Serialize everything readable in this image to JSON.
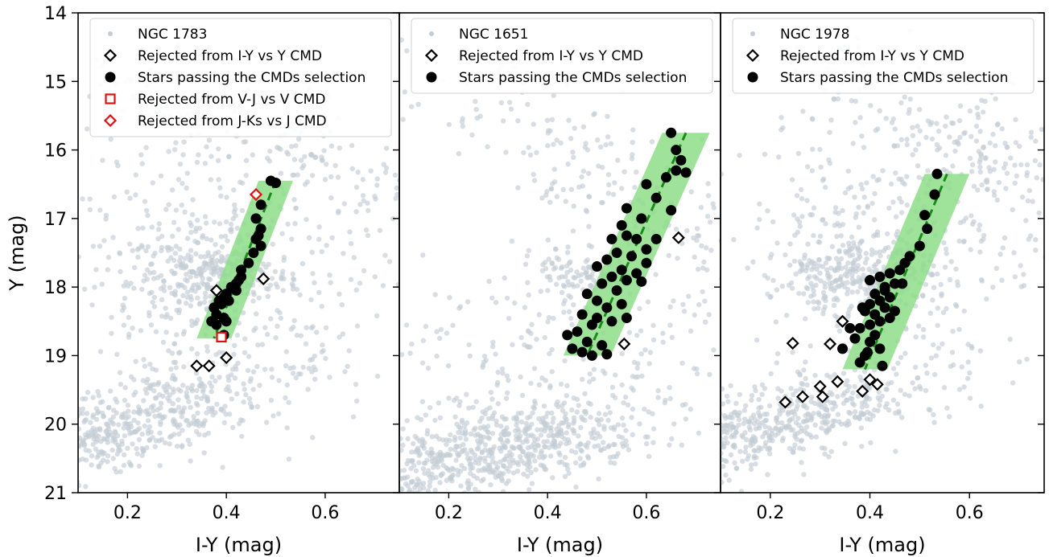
{
  "figure": {
    "ylabel": "Y (mag)",
    "ylim": [
      21,
      14
    ],
    "yticks": [
      "14",
      "15",
      "16",
      "17",
      "18",
      "19",
      "20",
      "21"
    ],
    "ytick_values": [
      14,
      15,
      16,
      17,
      18,
      19,
      20,
      21
    ],
    "colors": {
      "field": "#c3ccd4",
      "band": "#8ede8a",
      "fit_line": "#1a8a1a",
      "member": "#000000",
      "rejected_iy": "#000000",
      "rejected_other": "#e01010"
    }
  },
  "chart_data": [
    {
      "type": "scatter",
      "title": "",
      "xlabel": "I-Y (mag)",
      "ylabel": "Y (mag)",
      "xlim": [
        0.1,
        0.75
      ],
      "ylim": [
        21,
        14
      ],
      "xticks": [
        "0.2",
        "0.4",
        "0.6"
      ],
      "xtick_values": [
        0.2,
        0.4,
        0.6
      ],
      "legend": {
        "placement": "top",
        "entries": [
          {
            "label": "NGC 1783",
            "marker": "field-dot"
          },
          {
            "label": "Rejected from I-Y vs Y CMD",
            "marker": "black-diamond"
          },
          {
            "label": "Stars passing the CMDs selection",
            "marker": "black-circle"
          },
          {
            "label": "Rejected from V-J vs V CMD",
            "marker": "red-square"
          },
          {
            "label": "Rejected from J-Ks vs J CMD",
            "marker": "red-diamond"
          }
        ]
      },
      "band": {
        "y_top": 16.45,
        "y_bottom": 18.75,
        "x_top": 0.5,
        "x_bottom": 0.375,
        "half_width": 0.035
      },
      "fit_line": {
        "x1": 0.5,
        "y1": 16.45,
        "x2": 0.375,
        "y2": 18.75
      },
      "series": [
        {
          "name": "Stars passing the CMDs selection",
          "marker": "black-circle",
          "points": [
            [
              0.49,
              16.45
            ],
            [
              0.5,
              16.48
            ],
            [
              0.47,
              16.8
            ],
            [
              0.46,
              17.0
            ],
            [
              0.47,
              17.15
            ],
            [
              0.465,
              17.25
            ],
            [
              0.46,
              17.3
            ],
            [
              0.47,
              17.4
            ],
            [
              0.455,
              17.5
            ],
            [
              0.445,
              17.65
            ],
            [
              0.43,
              17.75
            ],
            [
              0.43,
              17.85
            ],
            [
              0.425,
              17.9
            ],
            [
              0.42,
              17.95
            ],
            [
              0.41,
              18.0
            ],
            [
              0.42,
              18.05
            ],
            [
              0.4,
              18.1
            ],
            [
              0.395,
              18.15
            ],
            [
              0.385,
              18.2
            ],
            [
              0.405,
              18.2
            ],
            [
              0.39,
              18.25
            ],
            [
              0.375,
              18.3
            ],
            [
              0.38,
              18.4
            ],
            [
              0.395,
              18.45
            ],
            [
              0.4,
              18.5
            ],
            [
              0.37,
              18.5
            ],
            [
              0.38,
              18.55
            ],
            [
              0.395,
              18.7
            ]
          ]
        },
        {
          "name": "Rejected from I-Y vs Y CMD",
          "marker": "black-diamond",
          "points": [
            [
              0.38,
              18.05
            ],
            [
              0.475,
              17.88
            ],
            [
              0.34,
              19.15
            ],
            [
              0.365,
              19.15
            ],
            [
              0.4,
              19.03
            ]
          ]
        },
        {
          "name": "Rejected from V-J vs V CMD",
          "marker": "red-square",
          "points": [
            [
              0.39,
              18.73
            ]
          ]
        },
        {
          "name": "Rejected from J-Ks vs J CMD",
          "marker": "red-diamond",
          "points": [
            [
              0.46,
              16.65
            ]
          ]
        }
      ]
    },
    {
      "type": "scatter",
      "title": "",
      "xlabel": "I-Y (mag)",
      "ylabel": "",
      "xlim": [
        0.1,
        0.75
      ],
      "ylim": [
        21,
        14
      ],
      "xticks": [
        "0.2",
        "0.4",
        "0.6"
      ],
      "xtick_values": [
        0.2,
        0.4,
        0.6
      ],
      "legend": {
        "placement": "top",
        "entries": [
          {
            "label": "NGC 1651",
            "marker": "field-dot"
          },
          {
            "label": "Rejected from I-Y vs Y CMD",
            "marker": "black-diamond"
          },
          {
            "label": "Stars passing the CMDs selection",
            "marker": "black-circle"
          }
        ]
      },
      "band": {
        "y_top": 15.75,
        "y_bottom": 19.0,
        "x_top": 0.68,
        "x_bottom": 0.48,
        "half_width": 0.048
      },
      "fit_line": {
        "x1": 0.68,
        "y1": 15.75,
        "x2": 0.48,
        "y2": 19.0
      },
      "series": [
        {
          "name": "Stars passing the CMDs selection",
          "marker": "black-circle",
          "points": [
            [
              0.65,
              15.75
            ],
            [
              0.66,
              16.0
            ],
            [
              0.67,
              16.15
            ],
            [
              0.66,
              16.3
            ],
            [
              0.68,
              16.33
            ],
            [
              0.64,
              16.4
            ],
            [
              0.6,
              16.5
            ],
            [
              0.62,
              16.7
            ],
            [
              0.65,
              16.88
            ],
            [
              0.56,
              16.85
            ],
            [
              0.59,
              17.0
            ],
            [
              0.55,
              17.1
            ],
            [
              0.56,
              17.25
            ],
            [
              0.58,
              17.3
            ],
            [
              0.62,
              17.3
            ],
            [
              0.53,
              17.3
            ],
            [
              0.6,
              17.45
            ],
            [
              0.54,
              17.5
            ],
            [
              0.57,
              17.55
            ],
            [
              0.6,
              17.65
            ],
            [
              0.52,
              17.6
            ],
            [
              0.5,
              17.7
            ],
            [
              0.55,
              17.75
            ],
            [
              0.58,
              17.8
            ],
            [
              0.53,
              17.85
            ],
            [
              0.56,
              17.9
            ],
            [
              0.59,
              17.92
            ],
            [
              0.51,
              17.95
            ],
            [
              0.54,
              18.05
            ],
            [
              0.48,
              18.1
            ],
            [
              0.5,
              18.2
            ],
            [
              0.52,
              18.3
            ],
            [
              0.55,
              18.25
            ],
            [
              0.47,
              18.4
            ],
            [
              0.5,
              18.45
            ],
            [
              0.53,
              18.5
            ],
            [
              0.56,
              18.45
            ],
            [
              0.49,
              18.55
            ],
            [
              0.46,
              18.65
            ],
            [
              0.48,
              18.8
            ],
            [
              0.51,
              18.85
            ],
            [
              0.45,
              18.9
            ],
            [
              0.47,
              18.95
            ],
            [
              0.49,
              19.0
            ],
            [
              0.52,
              18.98
            ],
            [
              0.44,
              18.7
            ]
          ]
        },
        {
          "name": "Rejected from I-Y vs Y CMD",
          "marker": "black-diamond",
          "points": [
            [
              0.665,
              17.28
            ],
            [
              0.555,
              18.83
            ]
          ]
        }
      ]
    },
    {
      "type": "scatter",
      "title": "",
      "xlabel": "I-Y (mag)",
      "ylabel": "",
      "xlim": [
        0.1,
        0.75
      ],
      "ylim": [
        21,
        14
      ],
      "xticks": [
        "0.2",
        "0.4",
        "0.6"
      ],
      "xtick_values": [
        0.2,
        0.4,
        0.6
      ],
      "legend": {
        "placement": "top",
        "entries": [
          {
            "label": "NGC 1978",
            "marker": "field-dot"
          },
          {
            "label": "Rejected from I-Y vs Y CMD",
            "marker": "black-diamond"
          },
          {
            "label": "Stars passing the CMDs selection",
            "marker": "black-circle"
          }
        ]
      },
      "band": {
        "y_top": 16.35,
        "y_bottom": 19.2,
        "x_top": 0.555,
        "x_bottom": 0.39,
        "half_width": 0.045
      },
      "fit_line": {
        "x1": 0.555,
        "y1": 16.35,
        "x2": 0.39,
        "y2": 19.2
      },
      "series": [
        {
          "name": "Stars passing the CMDs selection",
          "marker": "black-circle",
          "points": [
            [
              0.535,
              16.35
            ],
            [
              0.53,
              16.65
            ],
            [
              0.51,
              16.95
            ],
            [
              0.515,
              17.15
            ],
            [
              0.5,
              17.4
            ],
            [
              0.48,
              17.55
            ],
            [
              0.47,
              17.65
            ],
            [
              0.46,
              17.75
            ],
            [
              0.44,
              17.8
            ],
            [
              0.42,
              17.85
            ],
            [
              0.4,
              17.9
            ],
            [
              0.45,
              17.95
            ],
            [
              0.43,
              18.0
            ],
            [
              0.41,
              18.1
            ],
            [
              0.44,
              18.15
            ],
            [
              0.42,
              18.2
            ],
            [
              0.4,
              18.25
            ],
            [
              0.43,
              18.3
            ],
            [
              0.45,
              18.35
            ],
            [
              0.39,
              18.35
            ],
            [
              0.41,
              18.4
            ],
            [
              0.44,
              18.45
            ],
            [
              0.42,
              18.5
            ],
            [
              0.4,
              18.55
            ],
            [
              0.38,
              18.6
            ],
            [
              0.41,
              18.7
            ],
            [
              0.37,
              18.75
            ],
            [
              0.4,
              18.8
            ],
            [
              0.42,
              18.9
            ],
            [
              0.39,
              19.0
            ],
            [
              0.38,
              19.1
            ],
            [
              0.425,
              19.15
            ],
            [
              0.345,
              18.9
            ],
            [
              0.36,
              18.6
            ],
            [
              0.385,
              18.3
            ],
            [
              0.43,
              18.05
            ],
            [
              0.465,
              17.95
            ],
            [
              0.395,
              18.95
            ]
          ]
        },
        {
          "name": "Rejected from I-Y vs Y CMD",
          "marker": "black-diamond",
          "points": [
            [
              0.245,
              18.82
            ],
            [
              0.32,
              18.83
            ],
            [
              0.345,
              18.5
            ],
            [
              0.335,
              19.38
            ],
            [
              0.3,
              19.45
            ],
            [
              0.305,
              19.6
            ],
            [
              0.265,
              19.6
            ],
            [
              0.23,
              19.68
            ],
            [
              0.385,
              19.52
            ],
            [
              0.4,
              19.35
            ],
            [
              0.415,
              19.42
            ]
          ]
        }
      ]
    }
  ]
}
